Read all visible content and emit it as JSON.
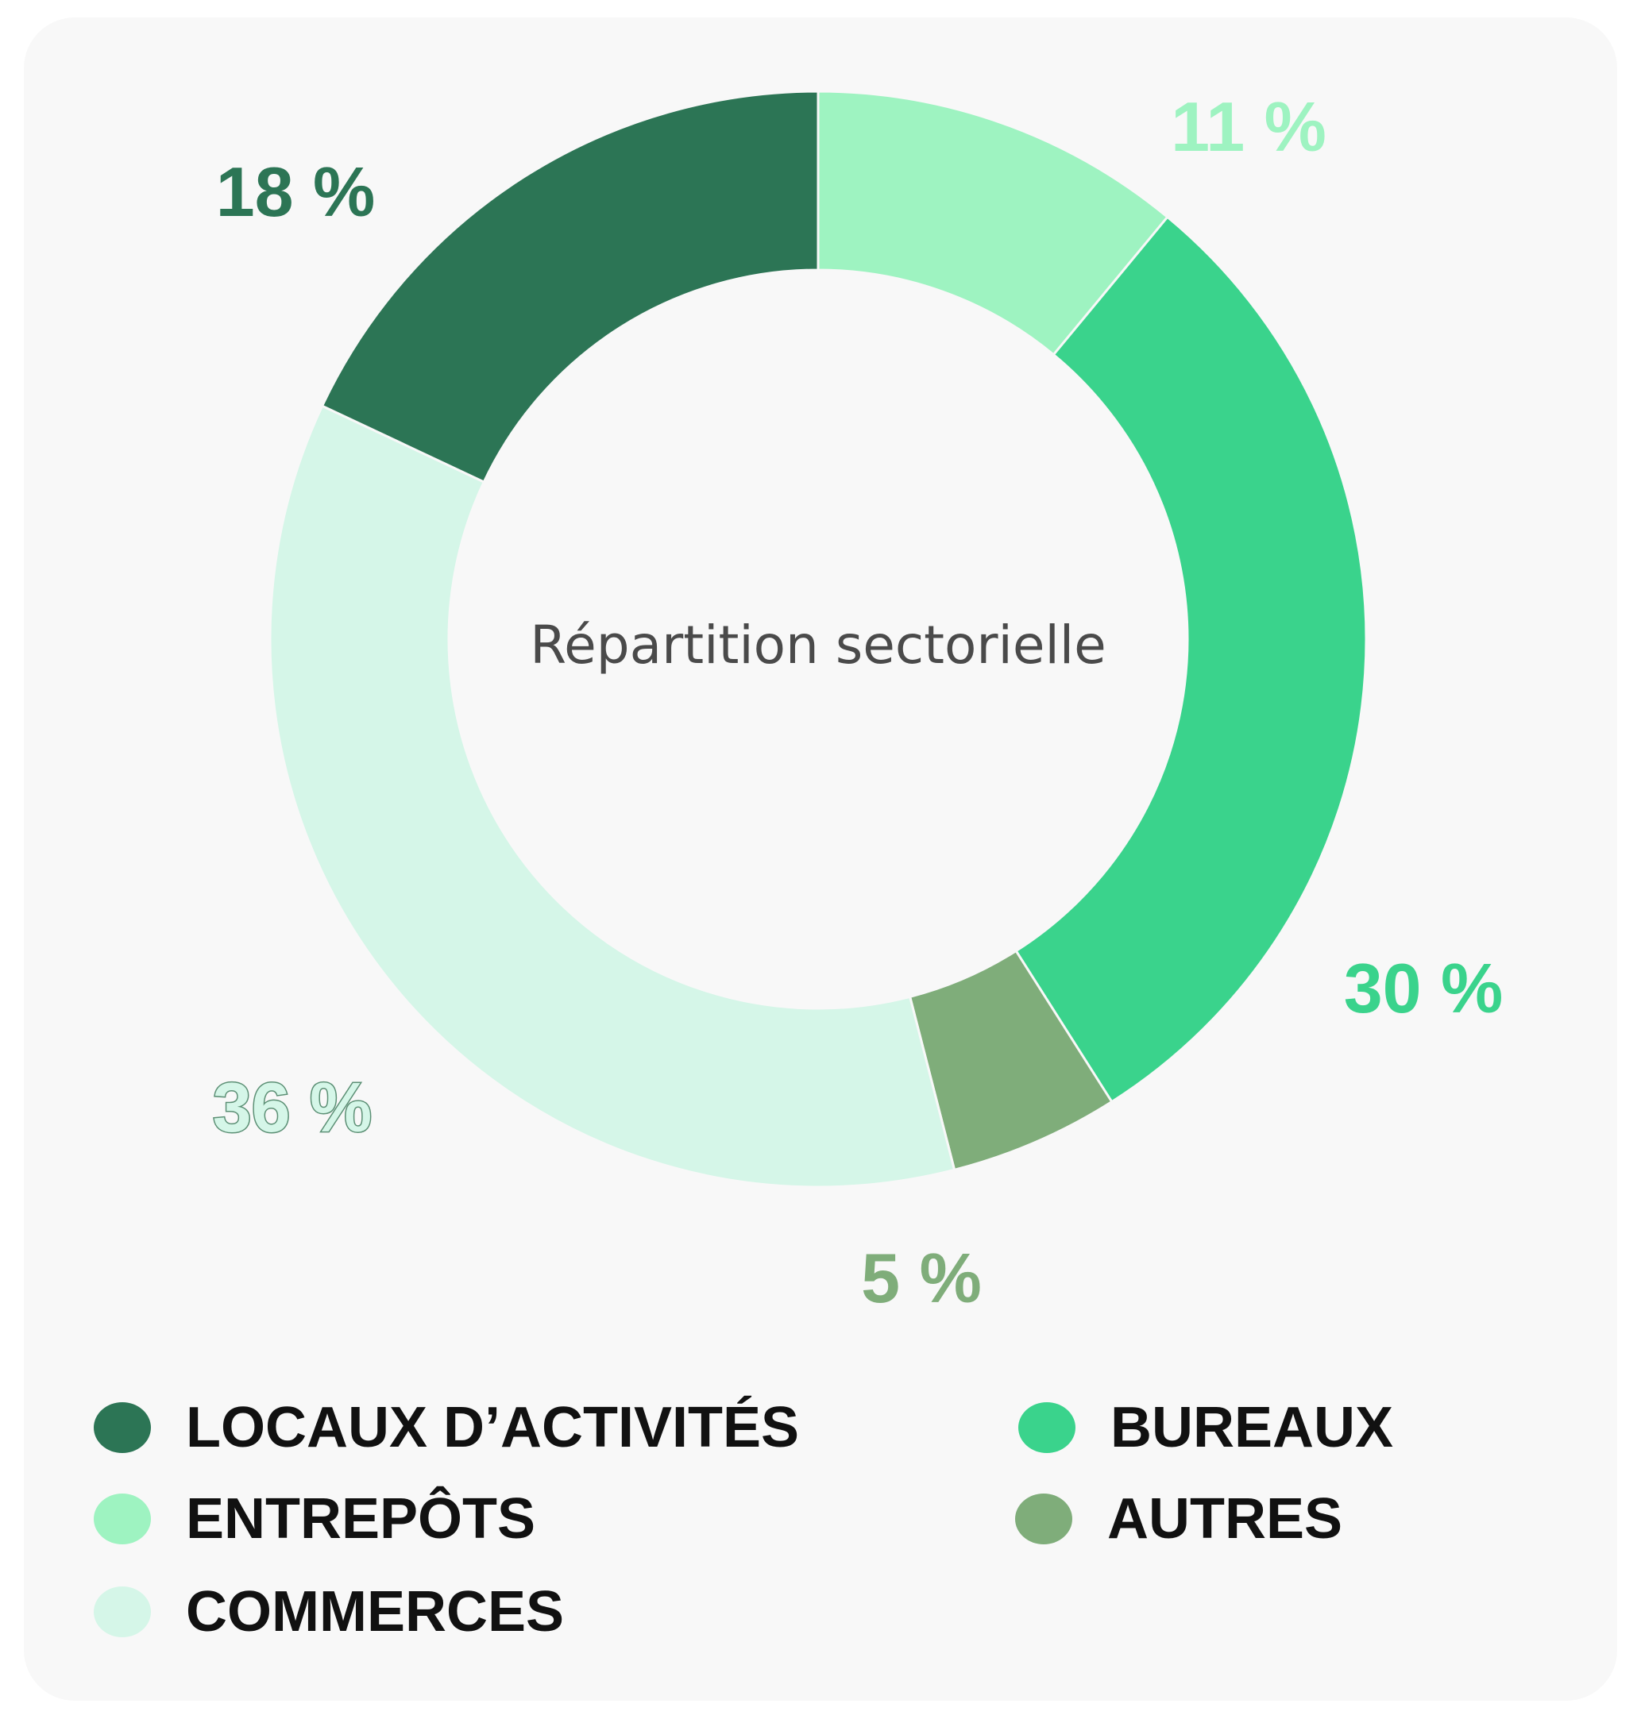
{
  "chart_data": {
    "type": "pie",
    "variant": "donut",
    "title": "Répartition sectorielle",
    "order_clockwise_from_top": [
      "ENTREPÔTS",
      "BUREAUX",
      "AUTRES",
      "COMMERCES",
      "LOCAUX D’ACTIVITÉS"
    ],
    "slices": [
      {
        "label": "ENTREPÔTS",
        "value": 11,
        "display": "11 %",
        "color": "#9ef3c1"
      },
      {
        "label": "BUREAUX",
        "value": 30,
        "display": "30 %",
        "color": "#3ad38c"
      },
      {
        "label": "AUTRES",
        "value": 5,
        "display": "5 %",
        "color": "#7fad7a"
      },
      {
        "label": "COMMERCES",
        "value": 36,
        "display": "36 %",
        "color": "#d5f6e8",
        "label_color": "#d5f6e8",
        "label_outline": "#5b8f74"
      },
      {
        "label": "LOCAUX D’ACTIVITÉS",
        "value": 18,
        "display": "18 %",
        "color": "#2c7555"
      }
    ],
    "legend_placement": "bottom",
    "legend": [
      {
        "label": "LOCAUX D’ACTIVITÉS",
        "color": "#2c7555"
      },
      {
        "label": "BUREAUX",
        "color": "#3ad38c"
      },
      {
        "label": "ENTREPÔTS",
        "color": "#9ef3c1"
      },
      {
        "label": "AUTRES",
        "color": "#7fad7a"
      },
      {
        "label": "COMMERCES",
        "color": "#d5f6e8"
      }
    ]
  }
}
